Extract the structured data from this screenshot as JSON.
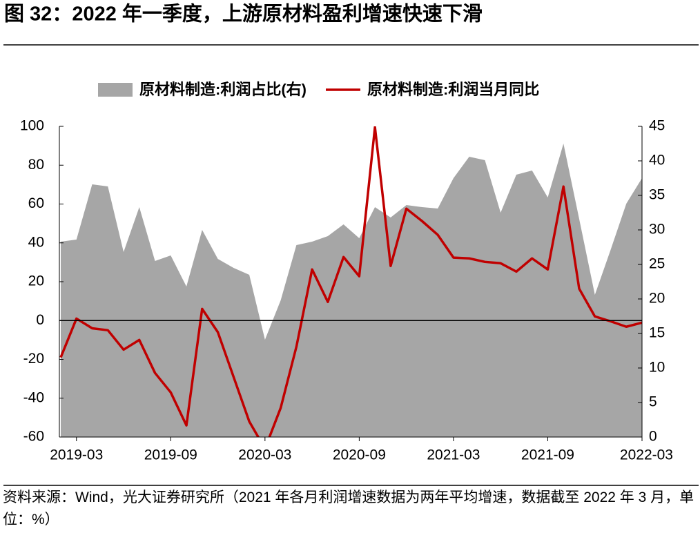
{
  "title": "图 32：2022 年一季度，上游原材料盈利增速快速下滑",
  "source": "资料来源：Wind，光大证券研究所（2021 年各月利润增速数据为两年平均增速，数据截至 2022 年 3 月，单位：%）",
  "chart_data": {
    "type": "line",
    "categories": [
      null,
      "2019-03",
      null,
      null,
      null,
      null,
      null,
      "2019-09",
      null,
      null,
      null,
      null,
      null,
      "2020-03",
      null,
      null,
      null,
      null,
      null,
      "2020-09",
      null,
      null,
      null,
      null,
      null,
      "2021-03",
      null,
      null,
      null,
      null,
      null,
      "2021-09",
      null,
      null,
      null,
      null,
      null,
      "2022-03"
    ],
    "series": [
      {
        "name": "原材料制造:利润占比(右)",
        "type": "area",
        "axis": "y2",
        "color": "#a6a6a6",
        "values": [
          28.3,
          28.6,
          36.6,
          36.3,
          26.8,
          33.3,
          25.5,
          26.3,
          21.8,
          30,
          25.8,
          24.5,
          23.5,
          14.1,
          19.8,
          27.8,
          28.3,
          29.1,
          30.8,
          28.8,
          33.3,
          31.8,
          33.6,
          33.3,
          33.1,
          37.5,
          40.6,
          40.1,
          32.5,
          38,
          38.6,
          34.7,
          42.5,
          31.6,
          20.6,
          27.1,
          33.8,
          37.5
        ]
      },
      {
        "name": "原材料制造:利润当月同比",
        "type": "line",
        "axis": "y",
        "color": "#c00000",
        "values": [
          -19,
          1,
          -4,
          -5,
          -15,
          -10,
          -27,
          -37,
          -54,
          6,
          -6,
          -29,
          -52,
          -66,
          -45,
          -13.5,
          26.3,
          9.6,
          32.7,
          22.8,
          99.6,
          28.1,
          57.6,
          51.2,
          44.1,
          32.4,
          32,
          30.2,
          29.5,
          25.2,
          32,
          26.3,
          69,
          16.4,
          2.1,
          -0.4,
          -3.2,
          -1.1
        ]
      }
    ],
    "ylim": [
      -60,
      100
    ],
    "yticks": [
      -60,
      -40,
      -20,
      0,
      20,
      40,
      60,
      80,
      100
    ],
    "y2lim": [
      0,
      45
    ],
    "y2ticks": [
      0,
      5,
      10,
      15,
      20,
      25,
      30,
      35,
      40,
      45
    ],
    "legend": "top"
  }
}
